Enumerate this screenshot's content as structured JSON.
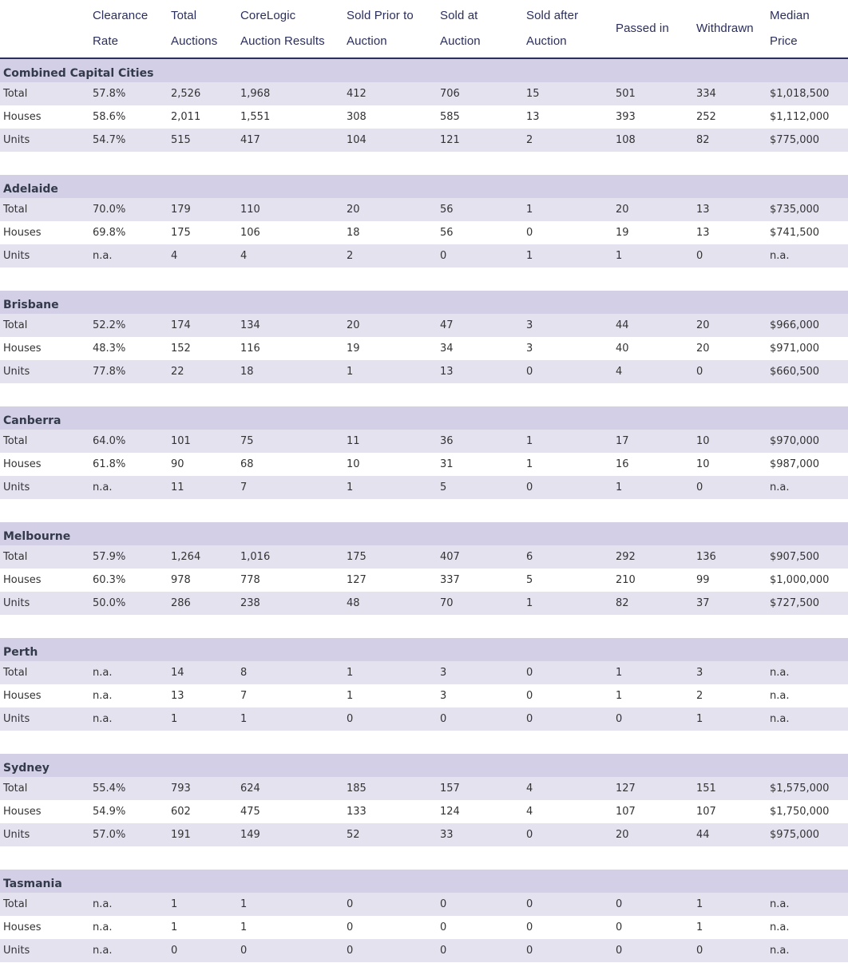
{
  "columns": [
    "",
    "Clearance\nRate",
    "Total\nAuctions",
    "CoreLogic\nAuction Results",
    "Sold Prior to\nAuction",
    "Sold at\nAuction",
    "Sold after\nAuction",
    "Passed in",
    "Withdrawn",
    "Median\nPrice"
  ],
  "sections": [
    {
      "name": "Combined Capital Cities",
      "rows": [
        [
          "Total",
          "57.8%",
          "2,526",
          "1,968",
          "412",
          "706",
          "15",
          "501",
          "334",
          "$1,018,500"
        ],
        [
          "Houses",
          "58.6%",
          "2,011",
          "1,551",
          "308",
          "585",
          "13",
          "393",
          "252",
          "$1,112,000"
        ],
        [
          "Units",
          "54.7%",
          "515",
          "417",
          "104",
          "121",
          "2",
          "108",
          "82",
          "$775,000"
        ]
      ]
    },
    {
      "name": "Adelaide",
      "rows": [
        [
          "Total",
          "70.0%",
          "179",
          "110",
          "20",
          "56",
          "1",
          "20",
          "13",
          "$735,000"
        ],
        [
          "Houses",
          "69.8%",
          "175",
          "106",
          "18",
          "56",
          "0",
          "19",
          "13",
          "$741,500"
        ],
        [
          "Units",
          "n.a.",
          "4",
          "4",
          "2",
          "0",
          "1",
          "1",
          "0",
          "n.a."
        ]
      ]
    },
    {
      "name": "Brisbane",
      "rows": [
        [
          "Total",
          "52.2%",
          "174",
          "134",
          "20",
          "47",
          "3",
          "44",
          "20",
          "$966,000"
        ],
        [
          "Houses",
          "48.3%",
          "152",
          "116",
          "19",
          "34",
          "3",
          "40",
          "20",
          "$971,000"
        ],
        [
          "Units",
          "77.8%",
          "22",
          "18",
          "1",
          "13",
          "0",
          "4",
          "0",
          "$660,500"
        ]
      ]
    },
    {
      "name": "Canberra",
      "rows": [
        [
          "Total",
          "64.0%",
          "101",
          "75",
          "11",
          "36",
          "1",
          "17",
          "10",
          "$970,000"
        ],
        [
          "Houses",
          "61.8%",
          "90",
          "68",
          "10",
          "31",
          "1",
          "16",
          "10",
          "$987,000"
        ],
        [
          "Units",
          "n.a.",
          "11",
          "7",
          "1",
          "5",
          "0",
          "1",
          "0",
          "n.a."
        ]
      ]
    },
    {
      "name": "Melbourne",
      "rows": [
        [
          "Total",
          "57.9%",
          "1,264",
          "1,016",
          "175",
          "407",
          "6",
          "292",
          "136",
          "$907,500"
        ],
        [
          "Houses",
          "60.3%",
          "978",
          "778",
          "127",
          "337",
          "5",
          "210",
          "99",
          "$1,000,000"
        ],
        [
          "Units",
          "50.0%",
          "286",
          "238",
          "48",
          "70",
          "1",
          "82",
          "37",
          "$727,500"
        ]
      ]
    },
    {
      "name": "Perth",
      "rows": [
        [
          "Total",
          "n.a.",
          "14",
          "8",
          "1",
          "3",
          "0",
          "1",
          "3",
          "n.a."
        ],
        [
          "Houses",
          "n.a.",
          "13",
          "7",
          "1",
          "3",
          "0",
          "1",
          "2",
          "n.a."
        ],
        [
          "Units",
          "n.a.",
          "1",
          "1",
          "0",
          "0",
          "0",
          "0",
          "1",
          "n.a."
        ]
      ]
    },
    {
      "name": "Sydney",
      "rows": [
        [
          "Total",
          "55.4%",
          "793",
          "624",
          "185",
          "157",
          "4",
          "127",
          "151",
          "$1,575,000"
        ],
        [
          "Houses",
          "54.9%",
          "602",
          "475",
          "133",
          "124",
          "4",
          "107",
          "107",
          "$1,750,000"
        ],
        [
          "Units",
          "57.0%",
          "191",
          "149",
          "52",
          "33",
          "0",
          "20",
          "44",
          "$975,000"
        ]
      ]
    },
    {
      "name": "Tasmania",
      "rows": [
        [
          "Total",
          "n.a.",
          "1",
          "1",
          "0",
          "0",
          "0",
          "0",
          "1",
          "n.a."
        ],
        [
          "Houses",
          "n.a.",
          "1",
          "1",
          "0",
          "0",
          "0",
          "0",
          "1",
          "n.a."
        ],
        [
          "Units",
          "n.a.",
          "0",
          "0",
          "0",
          "0",
          "0",
          "0",
          "0",
          "n.a."
        ]
      ]
    }
  ],
  "colors": {
    "header_text": "#2b2f5c",
    "section_band": "#d3cfe6",
    "shaded_row": "#e5e2f0",
    "body_text": "#333333"
  }
}
